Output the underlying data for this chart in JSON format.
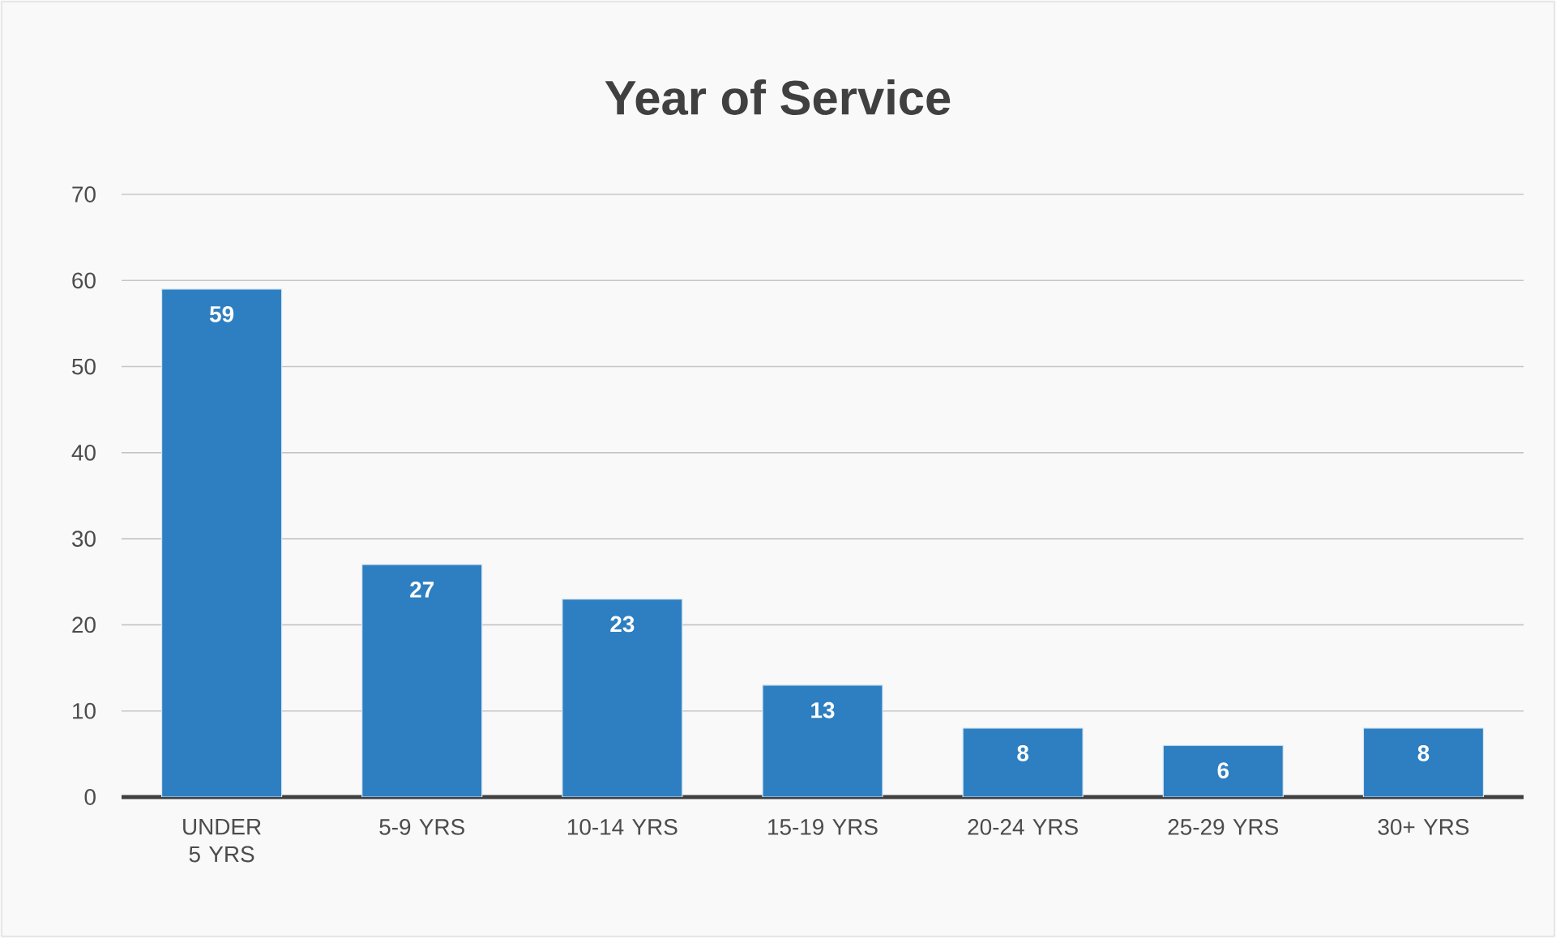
{
  "chart_data": {
    "type": "bar",
    "title": "Year of Service",
    "categories": [
      "UNDER 5 YRS",
      "5-9 YRS",
      "10-14 YRS",
      "15-19 YRS",
      "20-24 YRS",
      "25-29 YRS",
      "30+ YRS"
    ],
    "values": [
      59,
      27,
      23,
      13,
      8,
      6,
      8
    ],
    "color": "#2e7fc1",
    "ylim": [
      0,
      70
    ],
    "yticks": [
      0,
      10,
      20,
      30,
      40,
      50,
      60,
      70
    ],
    "grid": "y",
    "data_labels": true
  }
}
